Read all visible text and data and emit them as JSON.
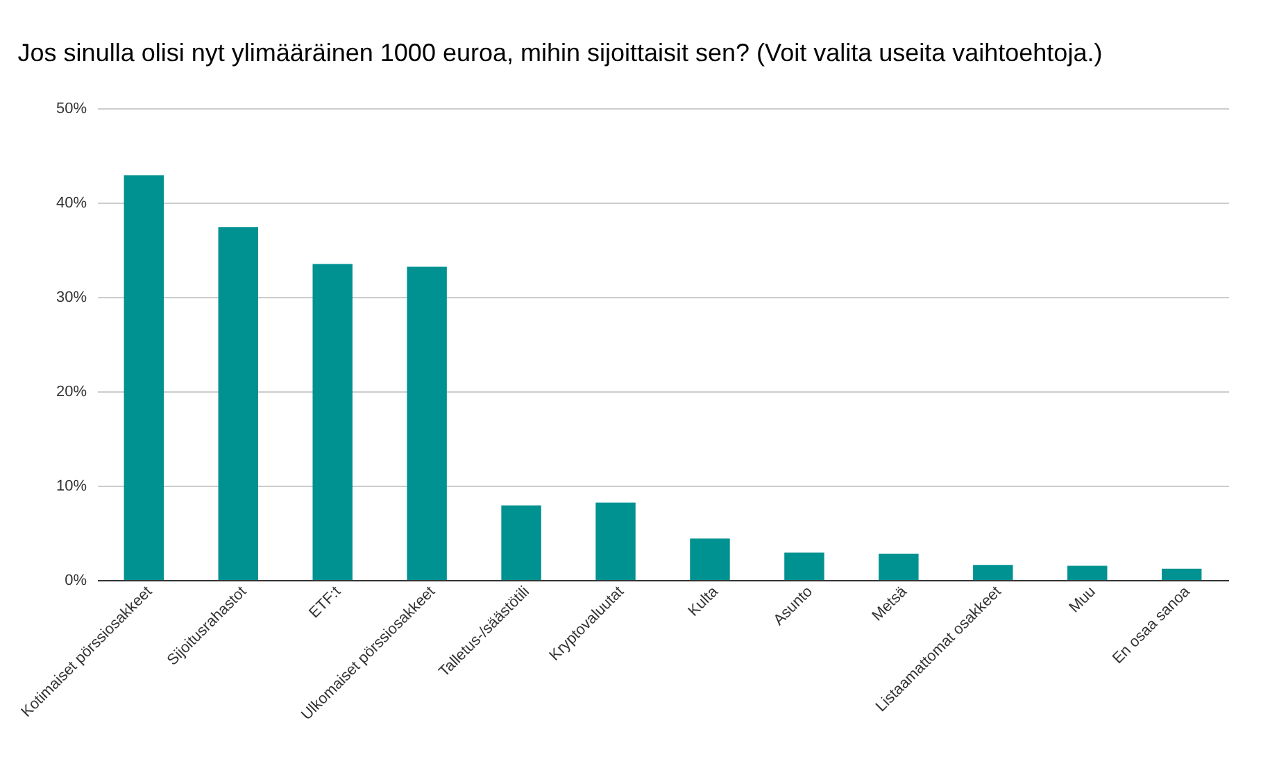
{
  "chart_data": {
    "type": "bar",
    "title": "Jos sinulla olisi nyt ylimääräinen 1000 euroa, mihin sijoittaisit sen? (Voit valita useita vaihtoehtoja.)",
    "categories": [
      "Kotimaiset pörssiosakkeet",
      "Sijoitusrahastot",
      "ETF:t",
      "Ulkomaiset pörssiosakkeet",
      "Talletus-/säästötili",
      "Kryptovaluutat",
      "Kulta",
      "Asunto",
      "Metsä",
      "Listaamattomat osakkeet",
      "Muu",
      "En osaa sanoa"
    ],
    "values": [
      42.9,
      37.4,
      33.5,
      33.2,
      7.9,
      8.2,
      4.4,
      2.9,
      2.8,
      1.6,
      1.5,
      1.2
    ],
    "color": "#009191",
    "ylim": [
      0,
      50
    ],
    "yticks": [
      {
        "value": 0,
        "label": "0%"
      },
      {
        "value": 10,
        "label": "10%"
      },
      {
        "value": 20,
        "label": "20%"
      },
      {
        "value": 30,
        "label": "30%"
      },
      {
        "value": 40,
        "label": "40%"
      },
      {
        "value": 50,
        "label": "50%"
      }
    ],
    "grid": "y"
  }
}
